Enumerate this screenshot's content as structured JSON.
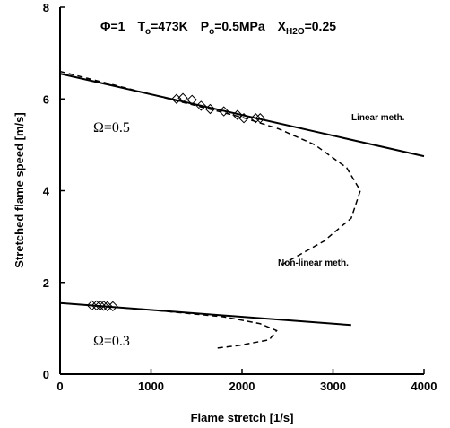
{
  "chart_data": {
    "type": "line",
    "title": [
      {
        "text": "Φ=1"
      },
      {
        "text": "T"
      },
      {
        "text": "o",
        "sub": true
      },
      {
        "text": "=473K"
      },
      {
        "text": "P"
      },
      {
        "text": "o",
        "sub": true
      },
      {
        "text": "=0.5MPa"
      },
      {
        "text": "X"
      },
      {
        "text": "H",
        "sub": true
      },
      {
        "text": "2",
        "sub": true
      },
      {
        "text": "O",
        "sub": true
      },
      {
        "text": "=0.25"
      }
    ],
    "x_label": "Flame stretch [1/s]",
    "y_label": "Stretched flame speed [m/s]",
    "xlim": [
      0,
      4000
    ],
    "xticks": [
      0,
      1000,
      2000,
      3000,
      4000
    ],
    "ylim": [
      0,
      8
    ],
    "yticks": [
      0,
      2,
      4,
      6,
      8
    ],
    "grid": false,
    "annotations": [
      "Linear meth.",
      "Non-linear meth.",
      "Ω=0.5",
      "Ω=0.3"
    ],
    "series": [
      {
        "color": "#000000",
        "style": "solid",
        "x": [
          0,
          4000
        ],
        "values": [
          6.55,
          4.75
        ]
      },
      {
        "color": "#000000",
        "style": "dashed",
        "x": [
          0,
          1000,
          1500,
          2000,
          2400,
          2800,
          3150,
          3300,
          3200,
          2900,
          2450
        ],
        "values": [
          6.6,
          6.1,
          5.85,
          5.6,
          5.35,
          5.0,
          4.5,
          4.0,
          3.4,
          2.9,
          2.4
        ]
      },
      {
        "color": "#000000",
        "style": "markers",
        "x": [
          1280,
          1350,
          1450,
          1550,
          1650,
          1800,
          1950,
          2020,
          2150,
          2200
        ],
        "values": [
          6.0,
          6.02,
          5.98,
          5.85,
          5.78,
          5.73,
          5.65,
          5.58,
          5.58,
          5.58
        ]
      },
      {
        "color": "#000000",
        "style": "solid",
        "x": [
          0,
          3200
        ],
        "values": [
          1.55,
          1.07
        ]
      },
      {
        "color": "#000000",
        "style": "dashed",
        "x": [
          0,
          1000,
          1800,
          2200,
          2380,
          2300,
          1950,
          1730
        ],
        "values": [
          1.55,
          1.4,
          1.25,
          1.1,
          0.95,
          0.75,
          0.62,
          0.57
        ]
      },
      {
        "color": "#000000",
        "style": "markers",
        "x": [
          350,
          400,
          440,
          480,
          520,
          580
        ],
        "values": [
          1.5,
          1.5,
          1.5,
          1.49,
          1.48,
          1.48
        ]
      }
    ]
  }
}
